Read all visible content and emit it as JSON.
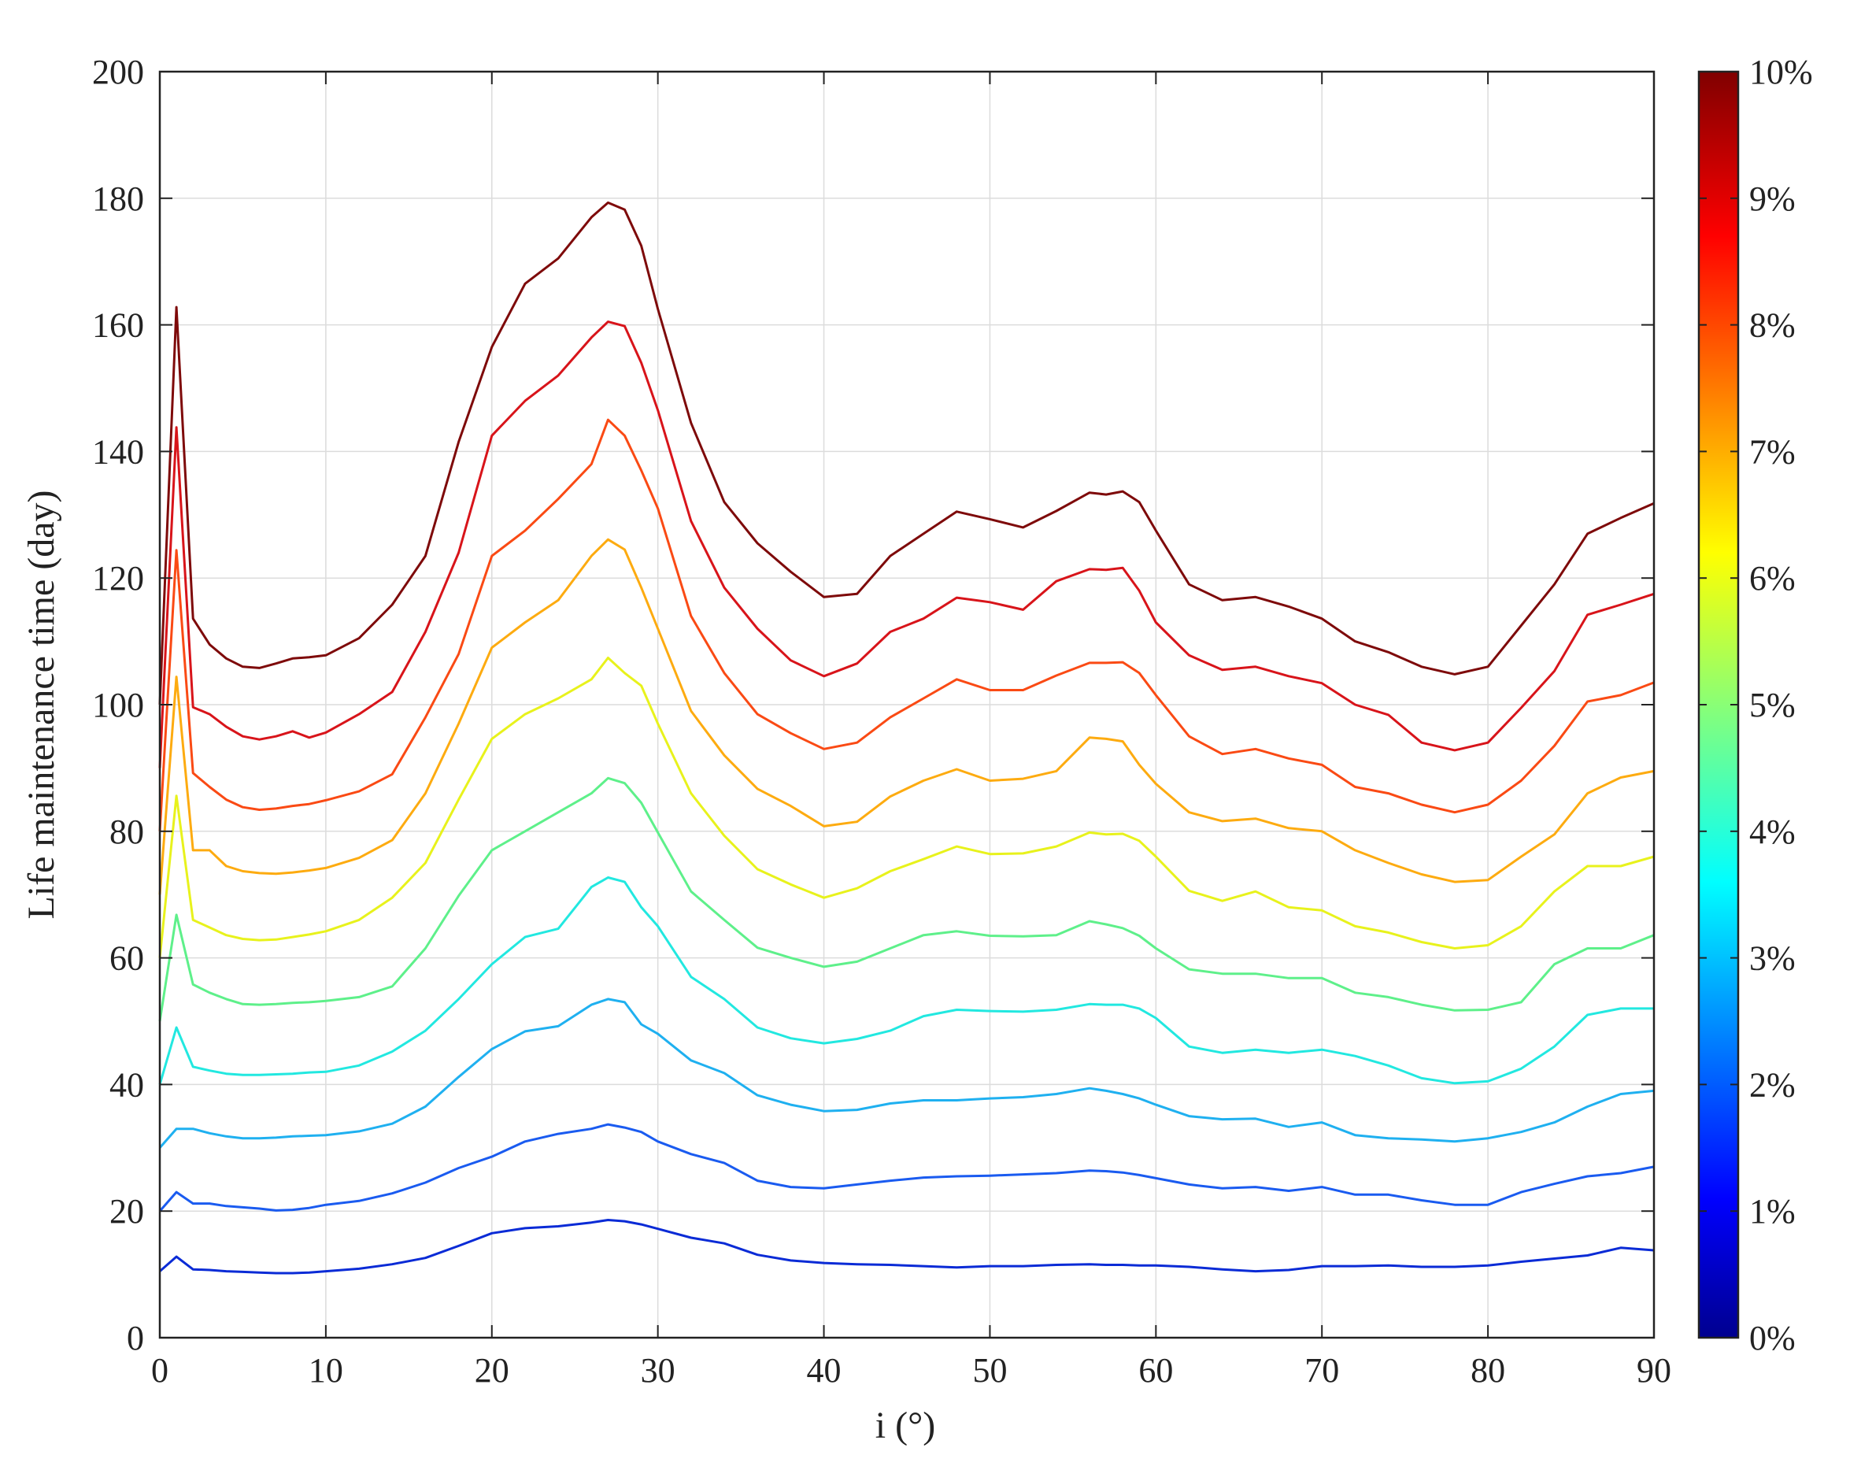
{
  "chart_data": {
    "type": "line",
    "xlabel": "i (°)",
    "ylabel": "Life maintenance time (day)",
    "xlim": [
      0,
      90
    ],
    "ylim": [
      0,
      200
    ],
    "xticks": [
      "0",
      "10",
      "20",
      "30",
      "40",
      "50",
      "60",
      "70",
      "80",
      "90"
    ],
    "yticks": [
      "0",
      "20",
      "40",
      "60",
      "80",
      "100",
      "120",
      "140",
      "160",
      "180",
      "200"
    ],
    "grid": true,
    "colorbar": {
      "colormap": "jet",
      "ticks": [
        "0%",
        "1%",
        "2%",
        "3%",
        "4%",
        "5%",
        "6%",
        "7%",
        "8%",
        "9%",
        "10%"
      ],
      "range": [
        0,
        10
      ]
    },
    "x": [
      0,
      1,
      2,
      3,
      4,
      5,
      6,
      7,
      8,
      9,
      10,
      12,
      14,
      16,
      18,
      20,
      22,
      24,
      26,
      27,
      28,
      29,
      30,
      32,
      34,
      36,
      38,
      40,
      42,
      44,
      46,
      48,
      50,
      52,
      54,
      56,
      57,
      58,
      59,
      60,
      62,
      64,
      66,
      68,
      70,
      72,
      74,
      76,
      78,
      80,
      82,
      84,
      86,
      88,
      90
    ],
    "series": [
      {
        "param": 1,
        "color": "#0a2bd6",
        "values": [
          10.5,
          12.8,
          10.8,
          10.7,
          10.5,
          10.4,
          10.3,
          10.2,
          10.2,
          10.3,
          10.5,
          10.9,
          11.6,
          12.6,
          14.5,
          16.5,
          17.3,
          17.6,
          18.2,
          18.6,
          18.4,
          17.9,
          17.2,
          15.8,
          14.9,
          13.1,
          12.2,
          11.8,
          11.6,
          11.5,
          11.3,
          11.1,
          11.3,
          11.3,
          11.5,
          11.6,
          11.5,
          11.5,
          11.4,
          11.4,
          11.2,
          10.8,
          10.5,
          10.7,
          11.3,
          11.3,
          11.4,
          11.2,
          11.2,
          11.4,
          12.0,
          12.5,
          13.0,
          14.2,
          13.8
        ]
      },
      {
        "param": 2,
        "color": "#1a5bf0",
        "values": [
          20.0,
          23.0,
          21.2,
          21.2,
          20.8,
          20.6,
          20.4,
          20.1,
          20.2,
          20.5,
          21.0,
          21.6,
          22.8,
          24.5,
          26.8,
          28.6,
          31.0,
          32.2,
          33.0,
          33.7,
          33.2,
          32.5,
          31.0,
          29.0,
          27.6,
          24.8,
          23.8,
          23.6,
          24.2,
          24.8,
          25.3,
          25.5,
          25.6,
          25.8,
          26.0,
          26.4,
          26.3,
          26.1,
          25.7,
          25.2,
          24.2,
          23.6,
          23.8,
          23.2,
          23.8,
          22.6,
          22.6,
          21.7,
          21.0,
          21.0,
          23.0,
          24.3,
          25.5,
          26.0,
          27.0
        ]
      },
      {
        "param": 3,
        "color": "#1fb0f0",
        "values": [
          30.0,
          33.0,
          33.0,
          32.3,
          31.8,
          31.5,
          31.5,
          31.6,
          31.8,
          31.9,
          32.0,
          32.6,
          33.8,
          36.5,
          41.2,
          45.6,
          48.4,
          49.2,
          52.6,
          53.5,
          53.0,
          49.5,
          48.0,
          43.8,
          41.8,
          38.3,
          36.8,
          35.8,
          36.0,
          37.0,
          37.5,
          37.5,
          37.8,
          38.0,
          38.5,
          39.4,
          39.0,
          38.5,
          37.8,
          36.8,
          35.0,
          34.5,
          34.6,
          33.3,
          34.0,
          32.0,
          31.5,
          31.3,
          31.0,
          31.5,
          32.5,
          34.0,
          36.5,
          38.5,
          39.0
        ]
      },
      {
        "param": 4,
        "color": "#22e8e0",
        "values": [
          40.0,
          49.0,
          42.8,
          42.2,
          41.7,
          41.5,
          41.5,
          41.6,
          41.7,
          41.9,
          42.0,
          43.0,
          45.2,
          48.5,
          53.5,
          59.0,
          63.3,
          64.6,
          71.2,
          72.7,
          72.0,
          68.0,
          65.0,
          57.0,
          53.5,
          49.0,
          47.3,
          46.5,
          47.2,
          48.5,
          50.8,
          51.8,
          51.6,
          51.5,
          51.8,
          52.7,
          52.6,
          52.6,
          52.0,
          50.5,
          46.0,
          45.0,
          45.5,
          45.0,
          45.5,
          44.5,
          43.0,
          41.0,
          40.2,
          40.5,
          42.5,
          46.0,
          51.0,
          52.0,
          52.0
        ]
      },
      {
        "param": 5,
        "color": "#5ef08a",
        "values": [
          50.0,
          66.8,
          55.8,
          54.5,
          53.5,
          52.7,
          52.6,
          52.7,
          52.9,
          53.0,
          53.2,
          53.8,
          55.5,
          61.5,
          69.8,
          77.0,
          80.0,
          83.0,
          86.0,
          88.4,
          87.6,
          84.5,
          79.8,
          70.5,
          66.0,
          61.6,
          60.0,
          58.6,
          59.4,
          61.5,
          63.6,
          64.2,
          63.5,
          63.4,
          63.6,
          65.8,
          65.3,
          64.7,
          63.5,
          61.5,
          58.2,
          57.5,
          57.5,
          56.8,
          56.8,
          54.5,
          53.8,
          52.6,
          51.7,
          51.8,
          53.0,
          59.0,
          61.5,
          61.5,
          63.6
        ]
      },
      {
        "param": 6,
        "color": "#e8f21c",
        "values": [
          60.0,
          85.6,
          66.0,
          64.8,
          63.6,
          63.0,
          62.8,
          62.9,
          63.3,
          63.7,
          64.2,
          66.0,
          69.5,
          75.0,
          85.0,
          94.6,
          98.5,
          101.0,
          104.0,
          107.4,
          105.0,
          103.0,
          97.0,
          86.0,
          79.3,
          74.0,
          71.6,
          69.5,
          71.0,
          73.7,
          75.6,
          77.6,
          76.4,
          76.5,
          77.6,
          79.8,
          79.5,
          79.6,
          78.5,
          76.0,
          70.6,
          69.0,
          70.5,
          68.0,
          67.5,
          65.0,
          64.0,
          62.5,
          61.5,
          62.0,
          65.0,
          70.5,
          74.5,
          74.5,
          76.0
        ]
      },
      {
        "param": 7,
        "color": "#fdab10",
        "values": [
          70.0,
          104.4,
          77.0,
          77.0,
          74.5,
          73.7,
          73.4,
          73.3,
          73.5,
          73.8,
          74.2,
          75.8,
          78.6,
          86.0,
          97.0,
          109.0,
          113.0,
          116.5,
          123.5,
          126.1,
          124.5,
          118.5,
          112.0,
          99.0,
          92.0,
          86.7,
          84.0,
          80.8,
          81.5,
          85.5,
          88.0,
          89.8,
          88.0,
          88.3,
          89.5,
          94.8,
          94.6,
          94.2,
          90.5,
          87.5,
          83.0,
          81.6,
          82.0,
          80.5,
          80.0,
          77.0,
          75.0,
          73.2,
          72.0,
          72.3,
          76.0,
          79.5,
          86.0,
          88.5,
          89.5
        ]
      },
      {
        "param": 8,
        "color": "#fa4a14",
        "values": [
          80.0,
          124.4,
          89.2,
          87.0,
          85.0,
          83.8,
          83.4,
          83.6,
          84.0,
          84.3,
          84.9,
          86.3,
          89.0,
          98.0,
          108.0,
          123.5,
          127.5,
          132.5,
          138.0,
          145.0,
          142.5,
          137.0,
          131.0,
          114.0,
          105.0,
          98.5,
          95.5,
          93.0,
          94.0,
          98.0,
          101.0,
          104.0,
          102.3,
          102.3,
          104.6,
          106.6,
          106.6,
          106.7,
          105.0,
          101.5,
          95.0,
          92.2,
          93.0,
          91.5,
          90.5,
          87.0,
          86.0,
          84.2,
          83.0,
          84.2,
          88.0,
          93.5,
          100.5,
          101.5,
          103.5
        ]
      },
      {
        "param": 9,
        "color": "#d8141a",
        "values": [
          90.0,
          143.8,
          99.6,
          98.5,
          96.5,
          95.0,
          94.5,
          95.0,
          95.8,
          94.8,
          95.6,
          98.5,
          102.0,
          111.5,
          124.0,
          142.5,
          148.0,
          152.0,
          158.0,
          160.5,
          159.8,
          154.0,
          146.5,
          129.0,
          118.5,
          112.0,
          107.0,
          104.5,
          106.5,
          111.5,
          113.6,
          116.9,
          116.2,
          115.0,
          119.5,
          121.4,
          121.3,
          121.6,
          118.0,
          113.0,
          107.8,
          105.5,
          106.0,
          104.5,
          103.4,
          100.0,
          98.4,
          94.0,
          92.8,
          94.0,
          99.5,
          105.3,
          114.2,
          115.8,
          117.5
        ]
      },
      {
        "param": 10,
        "color": "#7e0a0a",
        "values": [
          100.0,
          162.8,
          113.6,
          109.5,
          107.3,
          106.0,
          105.8,
          106.5,
          107.3,
          107.5,
          107.8,
          110.5,
          115.8,
          123.5,
          141.5,
          156.5,
          166.5,
          170.5,
          177.0,
          179.3,
          178.2,
          172.5,
          162.5,
          144.5,
          132.0,
          125.5,
          121.0,
          117.0,
          117.5,
          123.5,
          127.0,
          130.5,
          129.3,
          128.0,
          130.6,
          133.5,
          133.2,
          133.7,
          132.0,
          127.5,
          119.0,
          116.5,
          117.0,
          115.5,
          113.6,
          110.0,
          108.3,
          106.0,
          104.8,
          106.0,
          112.5,
          119.0,
          127.0,
          129.5,
          131.8
        ]
      }
    ]
  }
}
